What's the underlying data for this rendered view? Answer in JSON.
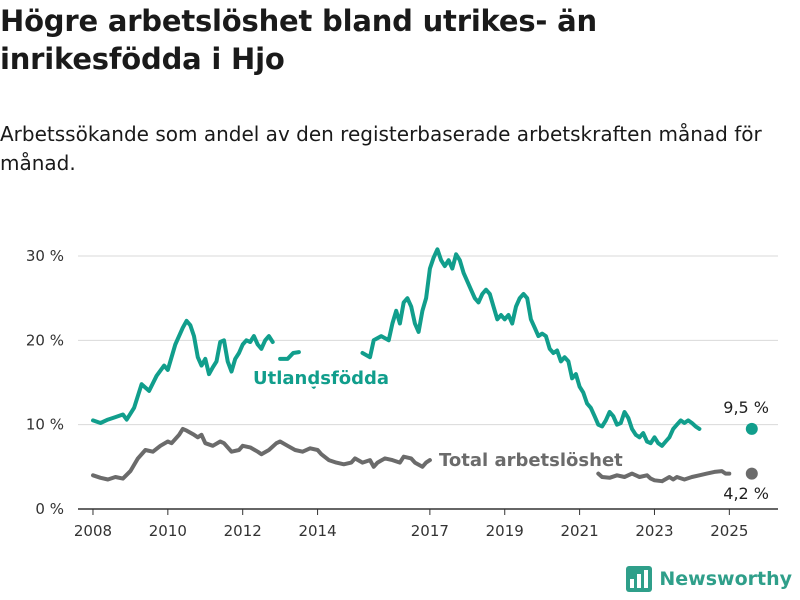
{
  "header": {
    "title": "Högre arbetslöshet bland utrikes- än inrikesfödda i Hjo",
    "subtitle": "Arbetssökande som andel av den registerbaserade arbetskraften månad för månad."
  },
  "brand": {
    "name": "Newsworthy",
    "icon": "bar-chart-logo-icon",
    "color": "#2f9f8a"
  },
  "colors": {
    "foreign_born": "#119e8c",
    "total": "#6b6b6b",
    "grid": "#d9d9d9"
  },
  "chart_data": {
    "type": "line",
    "xlabel": "",
    "ylabel": "",
    "xlim": [
      2007.6,
      2026.3
    ],
    "ylim": [
      0,
      30
    ],
    "x_ticks": [
      {
        "value": 2008,
        "label": "2008"
      },
      {
        "value": 2010,
        "label": "2010"
      },
      {
        "value": 2012,
        "label": "2012"
      },
      {
        "value": 2014,
        "label": "2014"
      },
      {
        "value": 2017,
        "label": "2017"
      },
      {
        "value": 2019,
        "label": "2019"
      },
      {
        "value": 2021,
        "label": "2021"
      },
      {
        "value": 2023,
        "label": "2023"
      },
      {
        "value": 2025,
        "label": "2025"
      }
    ],
    "y_ticks": [
      {
        "value": 0,
        "label": "0 %"
      },
      {
        "value": 10,
        "label": "10 %"
      },
      {
        "value": 20,
        "label": "20 %"
      },
      {
        "value": 30,
        "label": "30 %"
      }
    ],
    "grid": true,
    "series": [
      {
        "name": "Utlandsfödda",
        "label_text": "Utlandsfödda",
        "end_value_label": "9,5 %",
        "segments": [
          [
            [
              2008.0,
              10.5
            ],
            [
              2008.2,
              10.2
            ],
            [
              2008.4,
              10.6
            ],
            [
              2008.6,
              10.9
            ],
            [
              2008.8,
              11.2
            ],
            [
              2008.9,
              10.6
            ],
            [
              2009.1,
              12.0
            ],
            [
              2009.3,
              14.8
            ],
            [
              2009.5,
              14.0
            ],
            [
              2009.7,
              15.8
            ],
            [
              2009.9,
              17.0
            ],
            [
              2010.0,
              16.5
            ],
            [
              2010.2,
              19.5
            ],
            [
              2010.4,
              21.5
            ],
            [
              2010.5,
              22.3
            ],
            [
              2010.6,
              21.8
            ],
            [
              2010.7,
              20.5
            ],
            [
              2010.8,
              18.0
            ],
            [
              2010.9,
              17.0
            ],
            [
              2011.0,
              17.8
            ],
            [
              2011.1,
              16.0
            ],
            [
              2011.2,
              16.8
            ],
            [
              2011.3,
              17.5
            ],
            [
              2011.4,
              19.8
            ],
            [
              2011.5,
              20.0
            ],
            [
              2011.6,
              17.5
            ],
            [
              2011.7,
              16.3
            ],
            [
              2011.8,
              17.8
            ],
            [
              2011.9,
              18.5
            ],
            [
              2012.0,
              19.5
            ],
            [
              2012.1,
              20.0
            ],
            [
              2012.2,
              19.8
            ],
            [
              2012.3,
              20.5
            ],
            [
              2012.4,
              19.5
            ],
            [
              2012.5,
              19.0
            ],
            [
              2012.6,
              20.0
            ],
            [
              2012.7,
              20.5
            ],
            [
              2012.8,
              19.8
            ]
          ],
          [
            [
              2013.0,
              17.8
            ],
            [
              2013.2,
              17.8
            ],
            [
              2013.35,
              18.5
            ],
            [
              2013.5,
              18.6
            ]
          ],
          [
            [
              2013.8,
              15.0
            ],
            [
              2013.9,
              14.5
            ]
          ],
          [
            [
              2015.2,
              18.5
            ],
            [
              2015.4,
              18.0
            ],
            [
              2015.5,
              20.0
            ],
            [
              2015.7,
              20.5
            ],
            [
              2015.9,
              20.0
            ],
            [
              2016.0,
              22.0
            ],
            [
              2016.1,
              23.5
            ],
            [
              2016.2,
              22.0
            ],
            [
              2016.3,
              24.5
            ],
            [
              2016.4,
              25.0
            ],
            [
              2016.5,
              24.0
            ],
            [
              2016.6,
              22.0
            ],
            [
              2016.7,
              21.0
            ],
            [
              2016.8,
              23.5
            ],
            [
              2016.9,
              25.0
            ],
            [
              2017.0,
              28.5
            ],
            [
              2017.1,
              29.8
            ],
            [
              2017.2,
              30.8
            ],
            [
              2017.3,
              29.5
            ],
            [
              2017.4,
              28.8
            ],
            [
              2017.5,
              29.5
            ],
            [
              2017.6,
              28.5
            ],
            [
              2017.7,
              30.2
            ],
            [
              2017.8,
              29.5
            ],
            [
              2017.9,
              28.0
            ],
            [
              2018.0,
              27.0
            ],
            [
              2018.1,
              26.0
            ],
            [
              2018.2,
              25.0
            ],
            [
              2018.3,
              24.5
            ],
            [
              2018.4,
              25.5
            ],
            [
              2018.5,
              26.0
            ],
            [
              2018.6,
              25.5
            ],
            [
              2018.7,
              24.0
            ],
            [
              2018.8,
              22.5
            ],
            [
              2018.9,
              23.0
            ],
            [
              2019.0,
              22.5
            ],
            [
              2019.1,
              23.0
            ],
            [
              2019.2,
              22.0
            ],
            [
              2019.3,
              24.0
            ],
            [
              2019.4,
              25.0
            ],
            [
              2019.5,
              25.5
            ],
            [
              2019.6,
              25.0
            ],
            [
              2019.7,
              22.5
            ],
            [
              2019.8,
              21.5
            ],
            [
              2019.9,
              20.5
            ],
            [
              2020.0,
              20.8
            ],
            [
              2020.1,
              20.5
            ],
            [
              2020.2,
              19.0
            ],
            [
              2020.3,
              18.5
            ],
            [
              2020.4,
              18.8
            ],
            [
              2020.5,
              17.5
            ],
            [
              2020.6,
              18.0
            ],
            [
              2020.7,
              17.5
            ],
            [
              2020.8,
              15.5
            ],
            [
              2020.9,
              16.0
            ],
            [
              2021.0,
              14.5
            ],
            [
              2021.1,
              13.8
            ],
            [
              2021.2,
              12.5
            ],
            [
              2021.3,
              12.0
            ],
            [
              2021.4,
              11.0
            ],
            [
              2021.5,
              10.0
            ],
            [
              2021.6,
              9.8
            ],
            [
              2021.7,
              10.5
            ],
            [
              2021.8,
              11.5
            ],
            [
              2021.9,
              11.0
            ],
            [
              2022.0,
              10.0
            ],
            [
              2022.1,
              10.2
            ],
            [
              2022.2,
              11.5
            ],
            [
              2022.3,
              10.8
            ],
            [
              2022.4,
              9.5
            ],
            [
              2022.5,
              8.8
            ],
            [
              2022.6,
              8.5
            ],
            [
              2022.7,
              9.0
            ],
            [
              2022.8,
              8.0
            ],
            [
              2022.9,
              7.8
            ],
            [
              2023.0,
              8.5
            ],
            [
              2023.1,
              7.8
            ],
            [
              2023.2,
              7.5
            ],
            [
              2023.3,
              8.0
            ],
            [
              2023.4,
              8.5
            ],
            [
              2023.5,
              9.5
            ],
            [
              2023.6,
              10.0
            ],
            [
              2023.7,
              10.5
            ],
            [
              2023.8,
              10.2
            ],
            [
              2023.9,
              10.5
            ],
            [
              2024.0,
              10.2
            ],
            [
              2024.1,
              9.8
            ],
            [
              2024.2,
              9.5
            ]
          ]
        ]
      },
      {
        "name": "Total arbetslöshet",
        "label_text": "Total arbetslöshet",
        "end_value_label": "4,2 %",
        "segments": [
          [
            [
              2008.0,
              4.0
            ],
            [
              2008.2,
              3.7
            ],
            [
              2008.4,
              3.5
            ],
            [
              2008.6,
              3.8
            ],
            [
              2008.8,
              3.6
            ],
            [
              2009.0,
              4.5
            ],
            [
              2009.2,
              6.0
            ],
            [
              2009.4,
              7.0
            ],
            [
              2009.6,
              6.8
            ],
            [
              2009.8,
              7.5
            ],
            [
              2010.0,
              8.0
            ],
            [
              2010.1,
              7.8
            ],
            [
              2010.3,
              8.8
            ],
            [
              2010.4,
              9.5
            ],
            [
              2010.5,
              9.3
            ],
            [
              2010.7,
              8.8
            ],
            [
              2010.8,
              8.5
            ],
            [
              2010.9,
              8.8
            ],
            [
              2011.0,
              7.8
            ],
            [
              2011.2,
              7.5
            ],
            [
              2011.4,
              8.0
            ],
            [
              2011.5,
              7.8
            ],
            [
              2011.7,
              6.8
            ],
            [
              2011.9,
              7.0
            ],
            [
              2012.0,
              7.5
            ],
            [
              2012.2,
              7.3
            ],
            [
              2012.4,
              6.8
            ],
            [
              2012.5,
              6.5
            ],
            [
              2012.7,
              7.0
            ],
            [
              2012.9,
              7.8
            ],
            [
              2013.0,
              8.0
            ],
            [
              2013.2,
              7.5
            ],
            [
              2013.4,
              7.0
            ],
            [
              2013.6,
              6.8
            ],
            [
              2013.8,
              7.2
            ],
            [
              2014.0,
              7.0
            ],
            [
              2014.1,
              6.5
            ],
            [
              2014.3,
              5.8
            ],
            [
              2014.5,
              5.5
            ],
            [
              2014.7,
              5.3
            ],
            [
              2014.9,
              5.5
            ],
            [
              2015.0,
              6.0
            ],
            [
              2015.2,
              5.5
            ],
            [
              2015.4,
              5.8
            ],
            [
              2015.5,
              5.0
            ],
            [
              2015.6,
              5.5
            ],
            [
              2015.8,
              6.0
            ],
            [
              2016.0,
              5.8
            ],
            [
              2016.2,
              5.5
            ],
            [
              2016.3,
              6.2
            ],
            [
              2016.5,
              6.0
            ],
            [
              2016.6,
              5.5
            ],
            [
              2016.8,
              5.0
            ],
            [
              2016.9,
              5.5
            ],
            [
              2017.0,
              5.8
            ]
          ],
          [
            [
              2021.5,
              4.2
            ],
            [
              2021.6,
              3.8
            ],
            [
              2021.8,
              3.7
            ],
            [
              2022.0,
              4.0
            ],
            [
              2022.2,
              3.8
            ],
            [
              2022.4,
              4.2
            ],
            [
              2022.6,
              3.8
            ],
            [
              2022.8,
              4.0
            ],
            [
              2022.9,
              3.6
            ],
            [
              2023.0,
              3.4
            ],
            [
              2023.2,
              3.3
            ],
            [
              2023.4,
              3.8
            ],
            [
              2023.5,
              3.5
            ],
            [
              2023.6,
              3.8
            ],
            [
              2023.8,
              3.5
            ],
            [
              2024.0,
              3.8
            ],
            [
              2024.2,
              4.0
            ],
            [
              2024.4,
              4.2
            ],
            [
              2024.6,
              4.4
            ],
            [
              2024.8,
              4.5
            ],
            [
              2024.9,
              4.2
            ],
            [
              2025.0,
              4.2
            ]
          ]
        ]
      }
    ]
  }
}
